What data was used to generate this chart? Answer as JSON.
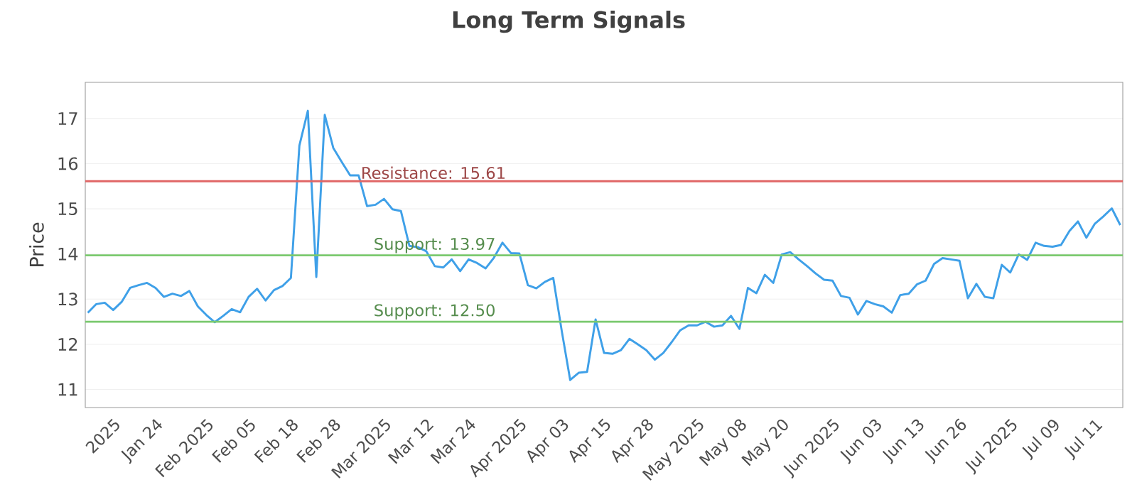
{
  "chart_data": {
    "type": "line",
    "title": "Long Term Signals",
    "ylabel": "Price",
    "categories": [
      null,
      null,
      null,
      "2025",
      null,
      null,
      null,
      null,
      "Jan 24",
      null,
      null,
      null,
      null,
      null,
      "Feb 2025",
      null,
      null,
      null,
      null,
      "Feb 05",
      null,
      null,
      null,
      null,
      "Feb 18",
      null,
      null,
      null,
      null,
      "Feb 28",
      null,
      null,
      null,
      null,
      null,
      "Mar 2025",
      null,
      null,
      null,
      null,
      "Mar 12",
      null,
      null,
      null,
      null,
      "Mar 24",
      null,
      null,
      null,
      null,
      null,
      "Apr 2025",
      null,
      null,
      null,
      null,
      "Apr 03",
      null,
      null,
      null,
      null,
      "Apr 15",
      null,
      null,
      null,
      null,
      "Apr 28",
      null,
      null,
      null,
      null,
      null,
      "May 2025",
      null,
      null,
      null,
      null,
      "May 08",
      null,
      null,
      null,
      null,
      "May 20",
      null,
      null,
      null,
      null,
      null,
      "Jun 2025",
      null,
      null,
      null,
      null,
      "Jun 03",
      null,
      null,
      null,
      null,
      "Jun 13",
      null,
      null,
      null,
      null,
      "Jun 26",
      null,
      null,
      null,
      null,
      null,
      "Jul 2025",
      null,
      null,
      null,
      null,
      "Jul 09",
      null,
      null,
      null,
      null,
      "Jul 11",
      null,
      null,
      null
    ],
    "series": [
      {
        "color": "#3fa0e8",
        "values": [
          12.7,
          12.89,
          12.92,
          12.76,
          12.94,
          13.25,
          13.31,
          13.36,
          13.25,
          13.05,
          13.12,
          13.07,
          13.18,
          12.84,
          12.65,
          12.49,
          12.63,
          12.78,
          12.71,
          13.05,
          13.23,
          12.97,
          13.2,
          13.29,
          13.47,
          16.4,
          17.17,
          13.49,
          17.08,
          16.35,
          16.04,
          15.74,
          15.74,
          15.06,
          15.09,
          15.22,
          14.99,
          14.95,
          14.18,
          14.15,
          14.06,
          13.73,
          13.7,
          13.88,
          13.62,
          13.88,
          13.8,
          13.68,
          13.92,
          14.25,
          14.02,
          14.01,
          13.31,
          13.24,
          13.38,
          13.47,
          12.3,
          11.21,
          11.37,
          11.39,
          12.55,
          11.81,
          11.79,
          11.87,
          12.12,
          12.0,
          11.87,
          11.66,
          11.81,
          12.05,
          12.31,
          12.42,
          12.42,
          12.5,
          12.39,
          12.42,
          12.63,
          12.34,
          13.25,
          13.13,
          13.54,
          13.36,
          13.99,
          14.04,
          13.88,
          13.73,
          13.57,
          13.43,
          13.41,
          13.07,
          13.03,
          12.66,
          12.96,
          12.89,
          12.84,
          12.7,
          13.09,
          13.12,
          13.33,
          13.41,
          13.78,
          13.91,
          13.88,
          13.85,
          13.02,
          13.34,
          13.05,
          13.02,
          13.76,
          13.59,
          13.99,
          13.87,
          14.25,
          14.18,
          14.16,
          14.2,
          14.51,
          14.72,
          14.36,
          14.67,
          14.83,
          15.01,
          14.64
        ]
      }
    ],
    "ylim": [
      10.6,
      17.8
    ],
    "yticks": [
      11,
      12,
      13,
      14,
      15,
      16,
      17
    ],
    "grid": "y",
    "legend": false,
    "marker": "none",
    "line_style": "solid",
    "ref_lines": [
      {
        "axis": "y",
        "value": 15.61,
        "label": "Resistance: 15.61",
        "color": "#e06666"
      },
      {
        "axis": "y",
        "value": 13.97,
        "label": "Support: 13.97",
        "color": "#7bc96f"
      },
      {
        "axis": "y",
        "value": 12.5,
        "label": "Support: 12.50",
        "color": "#7bc96f"
      }
    ]
  }
}
